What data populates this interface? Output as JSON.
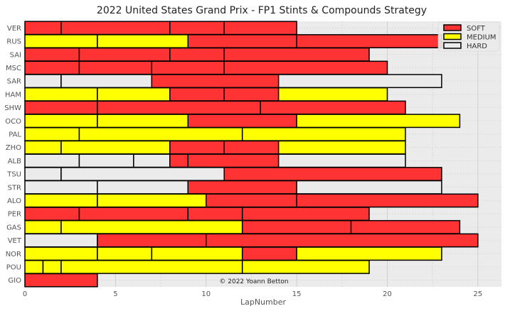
{
  "chart_data": {
    "type": "bar",
    "orientation": "horizontal-stacked",
    "title": "2022 United States Grand Prix - FP1 Stints & Compounds Strategy",
    "xlabel": "LapNumber",
    "ylabel": "",
    "xlim": [
      0,
      26.3
    ],
    "xticks": [
      0,
      5,
      10,
      15,
      20,
      25
    ],
    "grid": true,
    "legend_position": "top-right",
    "credit": "© 2022 Yoann Betton",
    "compounds": [
      {
        "name": "SOFT",
        "color": "#ff3333"
      },
      {
        "name": "MEDIUM",
        "color": "#ffff00"
      },
      {
        "name": "HARD",
        "color": "#ebebeb"
      }
    ],
    "drivers": [
      {
        "driver": "VER",
        "stints": [
          {
            "compound": "SOFT",
            "start": 0,
            "end": 2
          },
          {
            "compound": "SOFT",
            "start": 2,
            "end": 8
          },
          {
            "compound": "SOFT",
            "start": 8,
            "end": 11
          },
          {
            "compound": "SOFT",
            "start": 11,
            "end": 15
          }
        ]
      },
      {
        "driver": "RUS",
        "stints": [
          {
            "compound": "MEDIUM",
            "start": 0,
            "end": 4
          },
          {
            "compound": "MEDIUM",
            "start": 4,
            "end": 9
          },
          {
            "compound": "SOFT",
            "start": 9,
            "end": 15
          },
          {
            "compound": "SOFT",
            "start": 15,
            "end": 23
          }
        ]
      },
      {
        "driver": "SAI",
        "stints": [
          {
            "compound": "SOFT",
            "start": 0,
            "end": 3
          },
          {
            "compound": "SOFT",
            "start": 3,
            "end": 8
          },
          {
            "compound": "SOFT",
            "start": 8,
            "end": 11
          },
          {
            "compound": "SOFT",
            "start": 11,
            "end": 19
          }
        ]
      },
      {
        "driver": "MSC",
        "stints": [
          {
            "compound": "SOFT",
            "start": 0,
            "end": 3
          },
          {
            "compound": "SOFT",
            "start": 3,
            "end": 7
          },
          {
            "compound": "SOFT",
            "start": 7,
            "end": 11
          },
          {
            "compound": "SOFT",
            "start": 11,
            "end": 20
          }
        ]
      },
      {
        "driver": "SAR",
        "stints": [
          {
            "compound": "HARD",
            "start": 0,
            "end": 2
          },
          {
            "compound": "HARD",
            "start": 2,
            "end": 7
          },
          {
            "compound": "SOFT",
            "start": 7,
            "end": 14
          },
          {
            "compound": "HARD",
            "start": 14,
            "end": 23
          }
        ]
      },
      {
        "driver": "HAM",
        "stints": [
          {
            "compound": "MEDIUM",
            "start": 0,
            "end": 4
          },
          {
            "compound": "MEDIUM",
            "start": 4,
            "end": 8
          },
          {
            "compound": "SOFT",
            "start": 8,
            "end": 11
          },
          {
            "compound": "SOFT",
            "start": 11,
            "end": 14
          },
          {
            "compound": "MEDIUM",
            "start": 14,
            "end": 20
          }
        ]
      },
      {
        "driver": "SHW",
        "stints": [
          {
            "compound": "SOFT",
            "start": 0,
            "end": 4
          },
          {
            "compound": "SOFT",
            "start": 4,
            "end": 13
          },
          {
            "compound": "SOFT",
            "start": 13,
            "end": 21
          }
        ]
      },
      {
        "driver": "OCO",
        "stints": [
          {
            "compound": "MEDIUM",
            "start": 0,
            "end": 4
          },
          {
            "compound": "MEDIUM",
            "start": 4,
            "end": 9
          },
          {
            "compound": "SOFT",
            "start": 9,
            "end": 15
          },
          {
            "compound": "MEDIUM",
            "start": 15,
            "end": 24
          }
        ]
      },
      {
        "driver": "PAL",
        "stints": [
          {
            "compound": "MEDIUM",
            "start": 0,
            "end": 3
          },
          {
            "compound": "MEDIUM",
            "start": 3,
            "end": 12
          },
          {
            "compound": "MEDIUM",
            "start": 12,
            "end": 21
          }
        ]
      },
      {
        "driver": "ZHO",
        "stints": [
          {
            "compound": "MEDIUM",
            "start": 0,
            "end": 2
          },
          {
            "compound": "MEDIUM",
            "start": 2,
            "end": 8
          },
          {
            "compound": "SOFT",
            "start": 8,
            "end": 11
          },
          {
            "compound": "SOFT",
            "start": 11,
            "end": 14
          },
          {
            "compound": "MEDIUM",
            "start": 14,
            "end": 21
          }
        ]
      },
      {
        "driver": "ALB",
        "stints": [
          {
            "compound": "HARD",
            "start": 0,
            "end": 3
          },
          {
            "compound": "HARD",
            "start": 3,
            "end": 6
          },
          {
            "compound": "HARD",
            "start": 6,
            "end": 8
          },
          {
            "compound": "SOFT",
            "start": 8,
            "end": 9
          },
          {
            "compound": "SOFT",
            "start": 9,
            "end": 14
          },
          {
            "compound": "HARD",
            "start": 14,
            "end": 21
          }
        ]
      },
      {
        "driver": "TSU",
        "stints": [
          {
            "compound": "HARD",
            "start": 0,
            "end": 2
          },
          {
            "compound": "HARD",
            "start": 2,
            "end": 11
          },
          {
            "compound": "SOFT",
            "start": 11,
            "end": 23
          }
        ]
      },
      {
        "driver": "STR",
        "stints": [
          {
            "compound": "HARD",
            "start": 0,
            "end": 4
          },
          {
            "compound": "HARD",
            "start": 4,
            "end": 9
          },
          {
            "compound": "SOFT",
            "start": 9,
            "end": 15
          },
          {
            "compound": "HARD",
            "start": 15,
            "end": 23
          }
        ]
      },
      {
        "driver": "ALO",
        "stints": [
          {
            "compound": "MEDIUM",
            "start": 0,
            "end": 4
          },
          {
            "compound": "MEDIUM",
            "start": 4,
            "end": 10
          },
          {
            "compound": "SOFT",
            "start": 10,
            "end": 15
          },
          {
            "compound": "SOFT",
            "start": 15,
            "end": 25
          }
        ]
      },
      {
        "driver": "PER",
        "stints": [
          {
            "compound": "SOFT",
            "start": 0,
            "end": 3
          },
          {
            "compound": "SOFT",
            "start": 3,
            "end": 9
          },
          {
            "compound": "SOFT",
            "start": 9,
            "end": 12
          },
          {
            "compound": "SOFT",
            "start": 12,
            "end": 19
          }
        ]
      },
      {
        "driver": "GAS",
        "stints": [
          {
            "compound": "MEDIUM",
            "start": 0,
            "end": 2
          },
          {
            "compound": "MEDIUM",
            "start": 2,
            "end": 12
          },
          {
            "compound": "SOFT",
            "start": 12,
            "end": 18
          },
          {
            "compound": "SOFT",
            "start": 18,
            "end": 24
          }
        ]
      },
      {
        "driver": "VET",
        "stints": [
          {
            "compound": "HARD",
            "start": 0,
            "end": 4
          },
          {
            "compound": "SOFT",
            "start": 4,
            "end": 10
          },
          {
            "compound": "SOFT",
            "start": 10,
            "end": 25
          }
        ]
      },
      {
        "driver": "NOR",
        "stints": [
          {
            "compound": "MEDIUM",
            "start": 0,
            "end": 4
          },
          {
            "compound": "MEDIUM",
            "start": 4,
            "end": 7
          },
          {
            "compound": "MEDIUM",
            "start": 7,
            "end": 12
          },
          {
            "compound": "SOFT",
            "start": 12,
            "end": 15
          },
          {
            "compound": "MEDIUM",
            "start": 15,
            "end": 23
          }
        ]
      },
      {
        "driver": "POU",
        "stints": [
          {
            "compound": "MEDIUM",
            "start": 0,
            "end": 1
          },
          {
            "compound": "MEDIUM",
            "start": 1,
            "end": 2
          },
          {
            "compound": "MEDIUM",
            "start": 2,
            "end": 12
          },
          {
            "compound": "MEDIUM",
            "start": 12,
            "end": 19
          }
        ]
      },
      {
        "driver": "GIO",
        "stints": [
          {
            "compound": "SOFT",
            "start": 0,
            "end": 4
          }
        ]
      }
    ]
  }
}
